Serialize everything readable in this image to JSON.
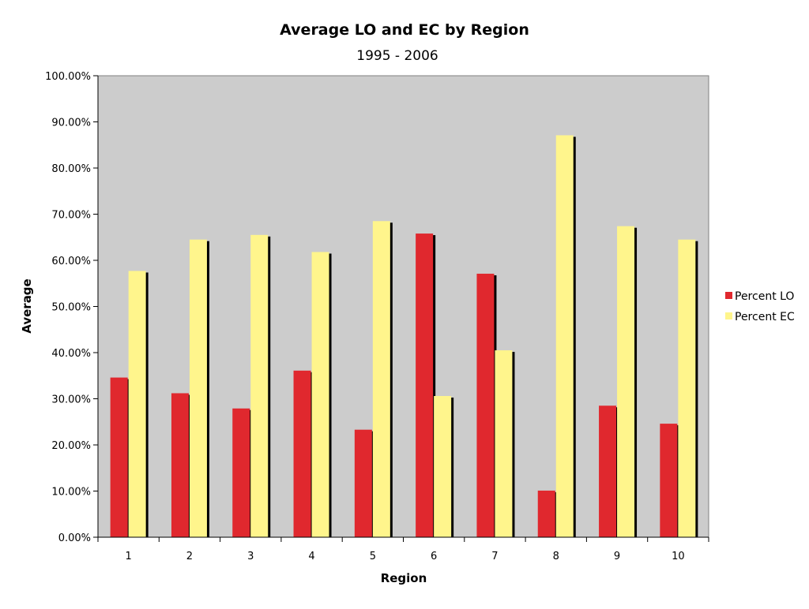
{
  "chart_data": {
    "type": "bar",
    "title": "Average LO and EC by Region",
    "subtitle": "1995 - 2006",
    "xlabel": "Region",
    "ylabel": "Average",
    "categories": [
      "1",
      "2",
      "3",
      "4",
      "5",
      "6",
      "7",
      "8",
      "9",
      "10"
    ],
    "ylim": [
      0,
      1
    ],
    "yticks": [
      {
        "value": 0,
        "label": "0.00%"
      },
      {
        "value": 0.1,
        "label": "10.00%"
      },
      {
        "value": 0.2,
        "label": "20.00%"
      },
      {
        "value": 0.3,
        "label": "30.00%"
      },
      {
        "value": 0.4,
        "label": "40.00%"
      },
      {
        "value": 0.5,
        "label": "50.00%"
      },
      {
        "value": 0.6,
        "label": "60.00%"
      },
      {
        "value": 0.7,
        "label": "70.00%"
      },
      {
        "value": 0.8,
        "label": "80.00%"
      },
      {
        "value": 0.9,
        "label": "90.00%"
      },
      {
        "value": 1,
        "label": "100.00%"
      }
    ],
    "series": [
      {
        "name": "Percent LO",
        "color": "#e0282e",
        "values": [
          0.346,
          0.312,
          0.279,
          0.361,
          0.233,
          0.658,
          0.571,
          0.101,
          0.285,
          0.246
        ]
      },
      {
        "name": "Percent EC",
        "color": "#fff58c",
        "values": [
          0.577,
          0.645,
          0.655,
          0.618,
          0.685,
          0.306,
          0.405,
          0.871,
          0.674,
          0.645
        ]
      }
    ],
    "plot_background": "#cccccc",
    "grid": false,
    "legend_position": "right"
  }
}
